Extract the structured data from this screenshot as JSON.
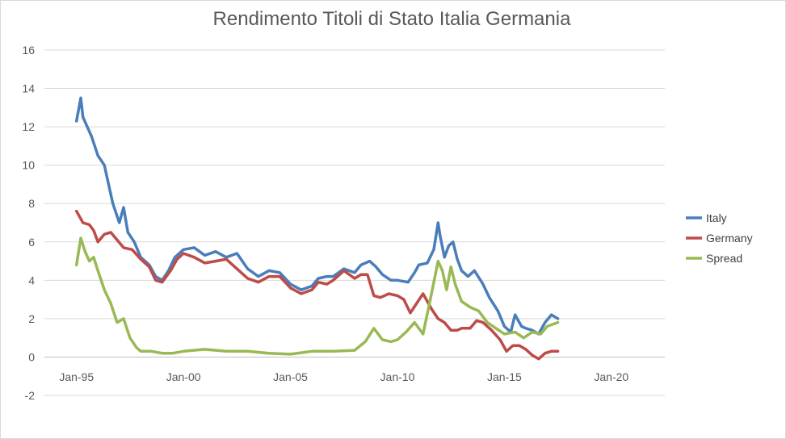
{
  "chart_data": {
    "type": "line",
    "title": "Rendimento Titoli di Stato Italia Germania",
    "xlabel": "",
    "ylabel": "",
    "ylim": [
      -2,
      16
    ],
    "yticks": [
      -2,
      0,
      2,
      4,
      6,
      8,
      10,
      12,
      14,
      16
    ],
    "xlim": [
      1993.5,
      2022.5
    ],
    "xticks": [
      {
        "label": "Jan-95",
        "value": 1995
      },
      {
        "label": "Jan-00",
        "value": 2000
      },
      {
        "label": "Jan-05",
        "value": 2005
      },
      {
        "label": "Jan-10",
        "value": 2010
      },
      {
        "label": "Jan-15",
        "value": 2015
      },
      {
        "label": "Jan-20",
        "value": 2020
      }
    ],
    "grid": true,
    "legend_position": "right",
    "series": [
      {
        "name": "Italy",
        "color": "#4a7ebb",
        "points": [
          [
            1995.0,
            12.3
          ],
          [
            1995.2,
            13.5
          ],
          [
            1995.3,
            12.5
          ],
          [
            1995.5,
            12.0
          ],
          [
            1995.7,
            11.5
          ],
          [
            1996.0,
            10.5
          ],
          [
            1996.3,
            10.0
          ],
          [
            1996.5,
            9.0
          ],
          [
            1996.7,
            8.0
          ],
          [
            1997.0,
            7.0
          ],
          [
            1997.2,
            7.8
          ],
          [
            1997.4,
            6.5
          ],
          [
            1997.7,
            6.0
          ],
          [
            1998.0,
            5.2
          ],
          [
            1998.4,
            4.8
          ],
          [
            1998.7,
            4.2
          ],
          [
            1999.0,
            4.0
          ],
          [
            1999.3,
            4.5
          ],
          [
            1999.6,
            5.2
          ],
          [
            2000.0,
            5.6
          ],
          [
            2000.5,
            5.7
          ],
          [
            2001.0,
            5.3
          ],
          [
            2001.5,
            5.5
          ],
          [
            2002.0,
            5.2
          ],
          [
            2002.5,
            5.4
          ],
          [
            2003.0,
            4.6
          ],
          [
            2003.5,
            4.2
          ],
          [
            2004.0,
            4.5
          ],
          [
            2004.5,
            4.4
          ],
          [
            2005.0,
            3.8
          ],
          [
            2005.5,
            3.5
          ],
          [
            2006.0,
            3.7
          ],
          [
            2006.3,
            4.1
          ],
          [
            2006.7,
            4.2
          ],
          [
            2007.0,
            4.2
          ],
          [
            2007.5,
            4.6
          ],
          [
            2008.0,
            4.4
          ],
          [
            2008.3,
            4.8
          ],
          [
            2008.7,
            5.0
          ],
          [
            2009.0,
            4.7
          ],
          [
            2009.3,
            4.3
          ],
          [
            2009.7,
            4.0
          ],
          [
            2010.0,
            4.0
          ],
          [
            2010.5,
            3.9
          ],
          [
            2010.8,
            4.4
          ],
          [
            2011.0,
            4.8
          ],
          [
            2011.4,
            4.9
          ],
          [
            2011.7,
            5.6
          ],
          [
            2011.9,
            7.0
          ],
          [
            2012.0,
            6.3
          ],
          [
            2012.2,
            5.2
          ],
          [
            2012.4,
            5.8
          ],
          [
            2012.6,
            6.0
          ],
          [
            2012.8,
            5.1
          ],
          [
            2013.0,
            4.5
          ],
          [
            2013.3,
            4.2
          ],
          [
            2013.6,
            4.5
          ],
          [
            2014.0,
            3.8
          ],
          [
            2014.3,
            3.1
          ],
          [
            2014.7,
            2.4
          ],
          [
            2015.0,
            1.6
          ],
          [
            2015.3,
            1.3
          ],
          [
            2015.5,
            2.2
          ],
          [
            2015.8,
            1.6
          ],
          [
            2016.0,
            1.5
          ],
          [
            2016.3,
            1.4
          ],
          [
            2016.6,
            1.2
          ],
          [
            2016.9,
            1.8
          ],
          [
            2017.2,
            2.2
          ],
          [
            2017.5,
            2.0
          ]
        ]
      },
      {
        "name": "Germany",
        "color": "#be4b48",
        "points": [
          [
            1995.0,
            7.6
          ],
          [
            1995.3,
            7.0
          ],
          [
            1995.6,
            6.9
          ],
          [
            1995.8,
            6.6
          ],
          [
            1996.0,
            6.0
          ],
          [
            1996.3,
            6.4
          ],
          [
            1996.6,
            6.5
          ],
          [
            1996.9,
            6.1
          ],
          [
            1997.2,
            5.7
          ],
          [
            1997.6,
            5.6
          ],
          [
            1998.0,
            5.1
          ],
          [
            1998.4,
            4.7
          ],
          [
            1998.7,
            4.0
          ],
          [
            1999.0,
            3.9
          ],
          [
            1999.4,
            4.5
          ],
          [
            1999.7,
            5.1
          ],
          [
            2000.0,
            5.4
          ],
          [
            2000.5,
            5.2
          ],
          [
            2001.0,
            4.9
          ],
          [
            2001.5,
            5.0
          ],
          [
            2002.0,
            5.1
          ],
          [
            2002.5,
            4.6
          ],
          [
            2003.0,
            4.1
          ],
          [
            2003.5,
            3.9
          ],
          [
            2004.0,
            4.2
          ],
          [
            2004.5,
            4.2
          ],
          [
            2005.0,
            3.6
          ],
          [
            2005.5,
            3.3
          ],
          [
            2006.0,
            3.5
          ],
          [
            2006.3,
            3.9
          ],
          [
            2006.7,
            3.8
          ],
          [
            2007.0,
            4.0
          ],
          [
            2007.5,
            4.5
          ],
          [
            2008.0,
            4.1
          ],
          [
            2008.3,
            4.3
          ],
          [
            2008.6,
            4.3
          ],
          [
            2008.9,
            3.2
          ],
          [
            2009.2,
            3.1
          ],
          [
            2009.6,
            3.3
          ],
          [
            2010.0,
            3.2
          ],
          [
            2010.3,
            3.0
          ],
          [
            2010.6,
            2.3
          ],
          [
            2010.9,
            2.8
          ],
          [
            2011.2,
            3.3
          ],
          [
            2011.6,
            2.5
          ],
          [
            2011.9,
            2.0
          ],
          [
            2012.2,
            1.8
          ],
          [
            2012.5,
            1.4
          ],
          [
            2012.8,
            1.4
          ],
          [
            2013.0,
            1.5
          ],
          [
            2013.4,
            1.5
          ],
          [
            2013.7,
            1.9
          ],
          [
            2014.0,
            1.8
          ],
          [
            2014.4,
            1.4
          ],
          [
            2014.8,
            0.9
          ],
          [
            2015.1,
            0.3
          ],
          [
            2015.4,
            0.6
          ],
          [
            2015.7,
            0.6
          ],
          [
            2016.0,
            0.4
          ],
          [
            2016.3,
            0.1
          ],
          [
            2016.6,
            -0.1
          ],
          [
            2016.9,
            0.2
          ],
          [
            2017.2,
            0.3
          ],
          [
            2017.5,
            0.3
          ]
        ]
      },
      {
        "name": "Spread",
        "color": "#98b954",
        "points": [
          [
            1995.0,
            4.8
          ],
          [
            1995.2,
            6.2
          ],
          [
            1995.4,
            5.5
          ],
          [
            1995.6,
            5.0
          ],
          [
            1995.8,
            5.2
          ],
          [
            1996.0,
            4.5
          ],
          [
            1996.3,
            3.5
          ],
          [
            1996.6,
            2.8
          ],
          [
            1996.9,
            1.8
          ],
          [
            1997.2,
            2.0
          ],
          [
            1997.5,
            1.0
          ],
          [
            1997.8,
            0.5
          ],
          [
            1998.0,
            0.3
          ],
          [
            1998.5,
            0.3
          ],
          [
            1999.0,
            0.2
          ],
          [
            1999.5,
            0.2
          ],
          [
            2000.0,
            0.3
          ],
          [
            2001.0,
            0.4
          ],
          [
            2002.0,
            0.3
          ],
          [
            2003.0,
            0.3
          ],
          [
            2004.0,
            0.2
          ],
          [
            2005.0,
            0.15
          ],
          [
            2006.0,
            0.3
          ],
          [
            2007.0,
            0.3
          ],
          [
            2008.0,
            0.35
          ],
          [
            2008.5,
            0.8
          ],
          [
            2008.9,
            1.5
          ],
          [
            2009.3,
            0.9
          ],
          [
            2009.7,
            0.8
          ],
          [
            2010.0,
            0.9
          ],
          [
            2010.4,
            1.3
          ],
          [
            2010.8,
            1.8
          ],
          [
            2011.2,
            1.2
          ],
          [
            2011.5,
            2.8
          ],
          [
            2011.9,
            5.0
          ],
          [
            2012.1,
            4.5
          ],
          [
            2012.3,
            3.5
          ],
          [
            2012.5,
            4.7
          ],
          [
            2012.7,
            3.8
          ],
          [
            2013.0,
            2.9
          ],
          [
            2013.4,
            2.6
          ],
          [
            2013.8,
            2.4
          ],
          [
            2014.2,
            1.8
          ],
          [
            2014.6,
            1.5
          ],
          [
            2015.0,
            1.2
          ],
          [
            2015.5,
            1.3
          ],
          [
            2015.9,
            1.0
          ],
          [
            2016.3,
            1.3
          ],
          [
            2016.7,
            1.2
          ],
          [
            2017.0,
            1.6
          ],
          [
            2017.5,
            1.8
          ]
        ]
      }
    ]
  }
}
